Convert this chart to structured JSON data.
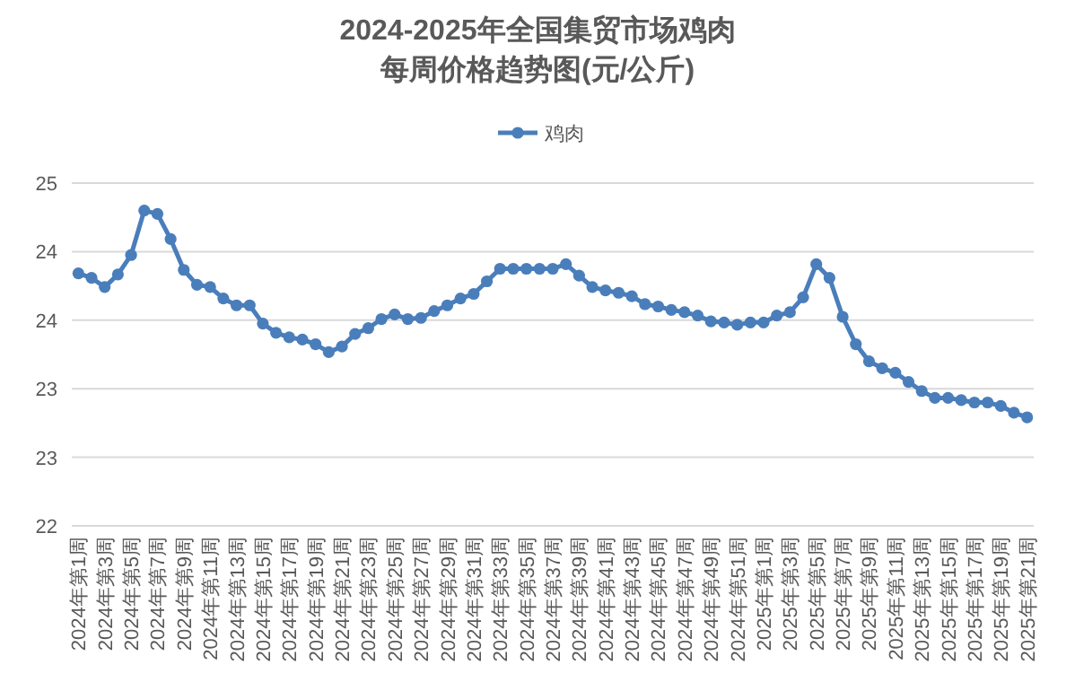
{
  "chart_data": {
    "type": "line",
    "title": "2024-2025年全国集贸市场鸡肉",
    "subtitle": "每周价格趋势图(元/公斤)",
    "categories": [
      "2024年第1周",
      null,
      "2024年第3周",
      null,
      "2024年第5周",
      null,
      "2024年第7周",
      null,
      "2024年第9周",
      null,
      "2024年第11周",
      null,
      "2024年第13周",
      null,
      "2024年第15周",
      null,
      "2024年第17周",
      null,
      "2024年第19周",
      null,
      "2024年第21周",
      null,
      "2024年第23周",
      null,
      "2024年第25周",
      null,
      "2024年第27周",
      null,
      "2024年第29周",
      null,
      "2024年第31周",
      null,
      "2024年第33周",
      null,
      "2024年第35周",
      null,
      "2024年第37周",
      null,
      "2024年第39周",
      null,
      "2024年第41周",
      null,
      "2024年第43周",
      null,
      "2024年第45周",
      null,
      "2024年第47周",
      null,
      "2024年第49周",
      null,
      "2024年第51周",
      null,
      "2025年第1周",
      null,
      "2025年第3周",
      null,
      "2025年第5周",
      null,
      "2025年第7周",
      null,
      "2025年第9周",
      null,
      "2025年第11周",
      null,
      "2025年第13周",
      null,
      "2025年第15周",
      null,
      "2025年第17周",
      null,
      "2025年第19周",
      null,
      "2025年第21周"
    ],
    "series": [
      {
        "name": "鸡肉",
        "color": "#4a7ebb",
        "values": [
          24.21,
          24.17,
          24.09,
          24.2,
          24.37,
          24.76,
          24.73,
          24.51,
          24.24,
          24.11,
          24.09,
          23.99,
          23.93,
          23.93,
          23.77,
          23.69,
          23.65,
          23.63,
          23.59,
          23.52,
          23.57,
          23.68,
          23.73,
          23.81,
          23.85,
          23.81,
          23.82,
          23.88,
          23.93,
          23.99,
          24.03,
          24.14,
          24.25,
          24.25,
          24.25,
          24.25,
          24.25,
          24.29,
          24.19,
          24.09,
          24.06,
          24.04,
          24.01,
          23.94,
          23.92,
          23.89,
          23.87,
          23.84,
          23.79,
          23.78,
          23.76,
          23.78,
          23.78,
          23.84,
          23.87,
          24.0,
          24.29,
          24.17,
          23.83,
          23.59,
          23.44,
          23.38,
          23.34,
          23.26,
          23.18,
          23.12,
          23.12,
          23.1,
          23.08,
          23.08,
          23.05,
          22.99,
          22.95
        ]
      }
    ],
    "ylim": [
      22,
      25
    ],
    "yticks": [
      22,
      {
        "value": 22.6,
        "label": "23"
      },
      {
        "value": 23.2,
        "label": "23"
      },
      {
        "value": 23.8,
        "label": "24"
      },
      {
        "value": 24.4,
        "label": "24"
      },
      25
    ],
    "grid": "y",
    "legend": "top",
    "marker": "circle",
    "line_style": "solid"
  }
}
